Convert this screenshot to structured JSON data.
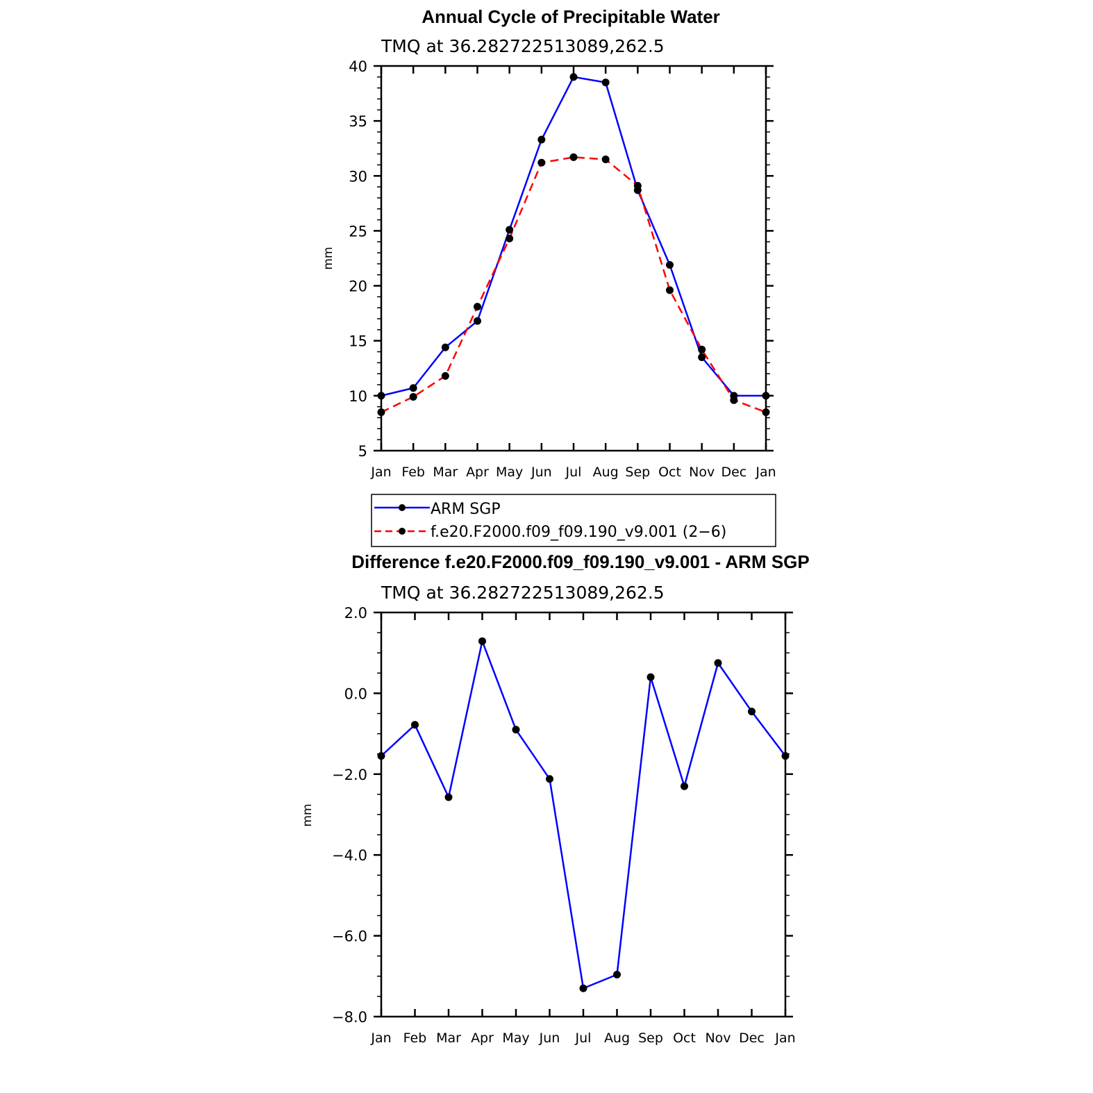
{
  "chart_data": [
    {
      "type": "line",
      "title": "Annual Cycle of Precipitable Water",
      "subtitle": "TMQ at 36.282722513089,262.5",
      "xlabel": "",
      "ylabel": "mm",
      "categories": [
        "Jan",
        "Feb",
        "Mar",
        "Apr",
        "May",
        "Jun",
        "Jul",
        "Aug",
        "Sep",
        "Oct",
        "Nov",
        "Dec",
        "Jan"
      ],
      "ylim": [
        5,
        40
      ],
      "yticks": [
        5,
        10,
        15,
        20,
        25,
        30,
        35,
        40
      ],
      "ytick_labels": [
        "5",
        "10",
        "15",
        "20",
        "25",
        "30",
        "35",
        "40"
      ],
      "series": [
        {
          "name": "ARM SGP",
          "color": "#0000ff",
          "dash": "solid",
          "values": [
            10.0,
            10.7,
            14.4,
            16.8,
            25.1,
            33.3,
            39.0,
            38.5,
            28.7,
            21.9,
            13.5,
            10.0,
            10.0
          ]
        },
        {
          "name": "f.e20.F2000.f09_f09.190_v9.001 (2−6)",
          "color": "#ff0000",
          "dash": "dashed",
          "values": [
            8.5,
            9.9,
            11.8,
            18.1,
            24.3,
            31.2,
            31.7,
            31.5,
            29.1,
            19.6,
            14.2,
            9.6,
            8.5
          ]
        }
      ],
      "legend": "below"
    },
    {
      "type": "line",
      "title": "Difference f.e20.F2000.f09_f09.190_v9.001 - ARM SGP",
      "subtitle": "TMQ at 36.282722513089,262.5",
      "xlabel": "",
      "ylabel": "mm",
      "categories": [
        "Jan",
        "Feb",
        "Mar",
        "Apr",
        "May",
        "Jun",
        "Jul",
        "Aug",
        "Sep",
        "Oct",
        "Nov",
        "Dec",
        "Jan"
      ],
      "ylim": [
        -8,
        2
      ],
      "yticks": [
        -8,
        -6,
        -4,
        -2,
        0,
        2
      ],
      "ytick_labels": [
        "−8.0",
        "−6.0",
        "−4.0",
        "−2.0",
        "0.0",
        "2.0"
      ],
      "series": [
        {
          "name": "Difference",
          "color": "#0000ff",
          "dash": "solid",
          "values": [
            -1.55,
            -0.78,
            -2.57,
            1.29,
            -0.9,
            -2.12,
            -7.3,
            -6.96,
            0.4,
            -2.3,
            0.75,
            -0.45,
            -1.55
          ]
        }
      ]
    }
  ]
}
